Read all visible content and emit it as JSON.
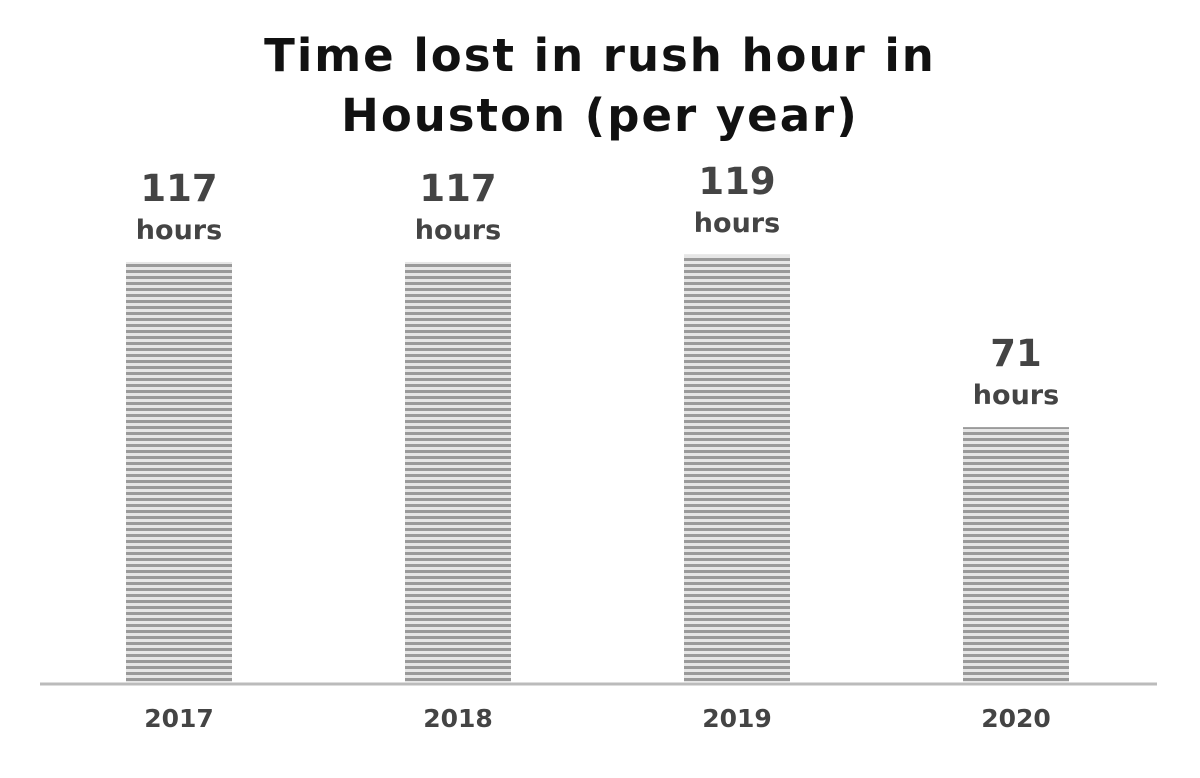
{
  "chart_data": {
    "type": "bar",
    "title": "Time lost in rush hour in Houston (per year)",
    "categories": [
      "2017",
      "2018",
      "2019",
      "2020"
    ],
    "values": [
      117,
      117,
      119,
      71
    ],
    "value_labels": [
      "117 hours",
      "117 hours",
      "119 hours",
      "71 hours"
    ],
    "color": "#9a9a9a"
  }
}
